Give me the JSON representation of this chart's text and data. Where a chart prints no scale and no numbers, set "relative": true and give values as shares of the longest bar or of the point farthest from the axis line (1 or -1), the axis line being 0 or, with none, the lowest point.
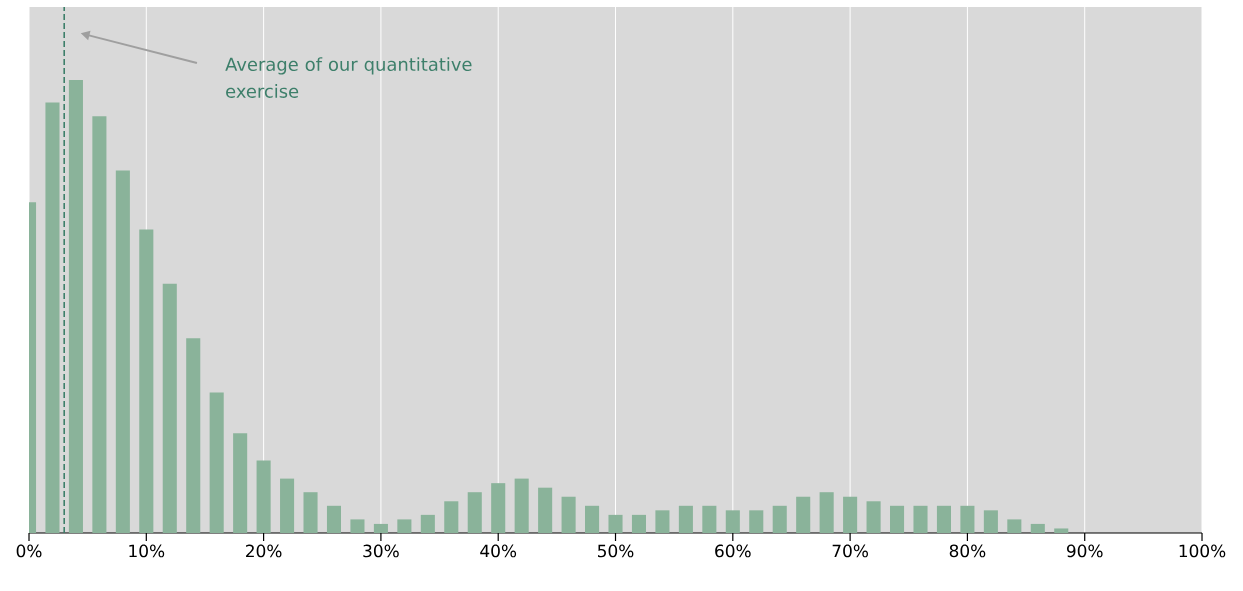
{
  "chart_data": {
    "type": "bar",
    "relative": true,
    "x": [
      0,
      2,
      4,
      6,
      8,
      10,
      12,
      14,
      16,
      18,
      20,
      22,
      24,
      26,
      28,
      30,
      32,
      34,
      36,
      38,
      40,
      42,
      44,
      46,
      48,
      50,
      52,
      54,
      56,
      58,
      60,
      62,
      64,
      66,
      68,
      70,
      72,
      74,
      76,
      78,
      80,
      82,
      84,
      86,
      88
    ],
    "values": [
      0.73,
      0.95,
      1,
      0.92,
      0.8,
      0.67,
      0.55,
      0.43,
      0.31,
      0.22,
      0.16,
      0.12,
      0.09,
      0.06,
      0.03,
      0.02,
      0.03,
      0.04,
      0.07,
      0.09,
      0.11,
      0.12,
      0.1,
      0.08,
      0.06,
      0.04,
      0.04,
      0.05,
      0.06,
      0.06,
      0.05,
      0.05,
      0.06,
      0.08,
      0.09,
      0.08,
      0.07,
      0.06,
      0.06,
      0.06,
      0.06,
      0.05,
      0.03,
      0.02,
      0.01
    ],
    "color": "#8ab39a",
    "xlim": [
      0,
      100
    ],
    "xticks": [
      {
        "value": 0,
        "label": "0%"
      },
      {
        "value": 10,
        "label": "10%"
      },
      {
        "value": 20,
        "label": "20%"
      },
      {
        "value": 30,
        "label": "30%"
      },
      {
        "value": 40,
        "label": "40%"
      },
      {
        "value": 50,
        "label": "50%"
      },
      {
        "value": 60,
        "label": "60%"
      },
      {
        "value": 70,
        "label": "70%"
      },
      {
        "value": 80,
        "label": "80%"
      },
      {
        "value": 90,
        "label": "90%"
      },
      {
        "value": 100,
        "label": "100%"
      }
    ],
    "grid": true,
    "ref_lines": [
      {
        "axis": "x",
        "value": 3,
        "label": "Average of our quantitative exercise",
        "color": "#3d7f6a",
        "line_style": "dashed"
      }
    ]
  }
}
